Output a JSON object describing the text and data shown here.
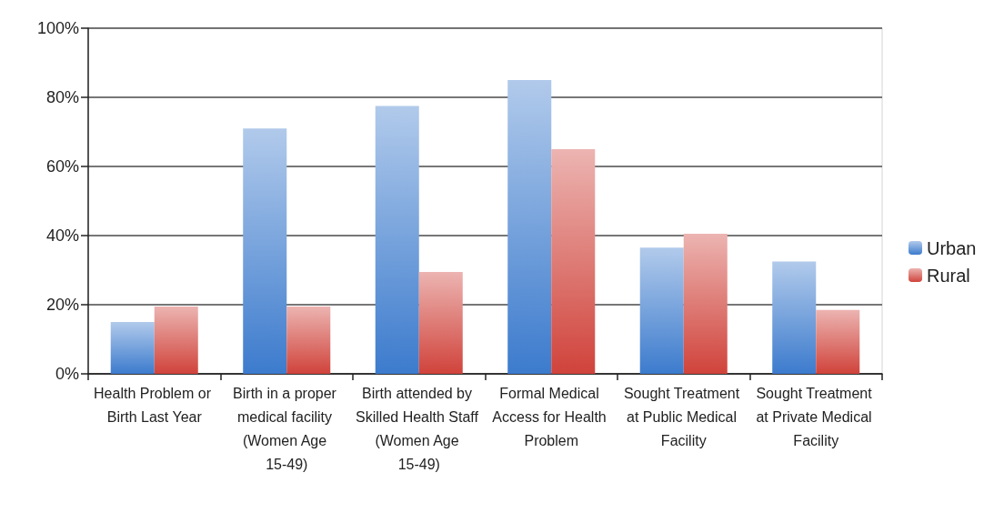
{
  "chart_data": {
    "type": "bar",
    "categories": [
      "Health Problem or Birth Last Year",
      "Birth in a proper medical facility (Women Age 15-49)",
      "Birth attended by Skilled Health Staff (Women Age 15-49)",
      "Formal Medical Access for Health Problem",
      "Sought Treatment at Public Medical Facility",
      "Sought Treatment at Private Medical Facility"
    ],
    "series": [
      {
        "name": "Urban",
        "color": "#3c7bcd",
        "values": [
          15,
          71,
          77.5,
          85,
          36.5,
          32.5
        ]
      },
      {
        "name": "Rural",
        "color": "#d0433b",
        "values": [
          19.5,
          19.5,
          29.5,
          65,
          40.5,
          18.5
        ]
      }
    ],
    "ylim": [
      0,
      100
    ],
    "yticks": [
      {
        "value": 0,
        "label": "0%"
      },
      {
        "value": 20,
        "label": "20%"
      },
      {
        "value": 40,
        "label": "40%"
      },
      {
        "value": 60,
        "label": "60%"
      },
      {
        "value": 80,
        "label": "80%"
      },
      {
        "value": 100,
        "label": "100%"
      }
    ],
    "grid": "y",
    "legend": "right"
  }
}
